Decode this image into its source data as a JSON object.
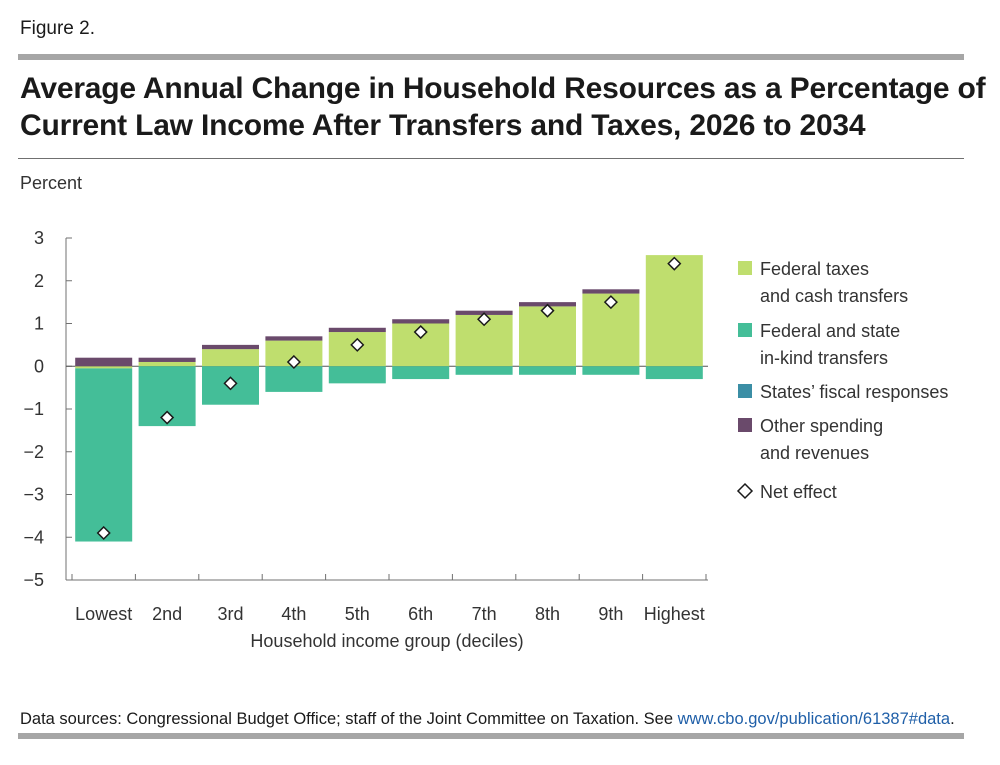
{
  "figure_label": "Figure 2.",
  "title_line1": "Average Annual Change in Household Resources as a Percentage of",
  "title_line2": "Current Law Income After Transfers and Taxes, 2026 to 2034",
  "sources_text": "Data sources: Congressional Budget Office; staff of the Joint Committee on Taxation. See ",
  "sources_link": "www.cbo.gov/publication/61387#data",
  "sources_end": ".",
  "colors": {
    "federal_taxes": "#bfde6e",
    "in_kind": "#44be98",
    "states": "#3b8ea5",
    "other": "#6a4a6b",
    "axis": "#707070"
  },
  "chart_data": {
    "type": "bar",
    "stacked": true,
    "title": "Average Annual Change in Household Resources as a Percentage of Current Law Income After Transfers and Taxes, 2026 to 2034",
    "ylabel": "Percent",
    "xlabel": "Household income group (deciles)",
    "ylim": [
      -5,
      3
    ],
    "yticks": [
      3,
      2,
      1,
      0,
      -1,
      -2,
      -3,
      -4,
      -5
    ],
    "ytick_labels": [
      "3",
      "2",
      "1",
      "0",
      "−1",
      "−2",
      "−3",
      "−4",
      "−5"
    ],
    "categories": [
      "Lowest",
      "2nd",
      "3rd",
      "4th",
      "5th",
      "6th",
      "7th",
      "8th",
      "9th",
      "Highest"
    ],
    "series": [
      {
        "name": "Federal taxes and cash transfers",
        "legend_lines": [
          "Federal taxes",
          "and cash transfers"
        ],
        "color_key": "federal_taxes",
        "values": [
          -0.05,
          0.1,
          0.4,
          0.6,
          0.8,
          1.0,
          1.2,
          1.4,
          1.7,
          2.6
        ]
      },
      {
        "name": "Federal and state in-kind transfers",
        "legend_lines": [
          "Federal and state",
          "in-kind transfers"
        ],
        "color_key": "in_kind",
        "values": [
          -4.05,
          -1.4,
          -0.9,
          -0.6,
          -0.4,
          -0.3,
          -0.2,
          -0.2,
          -0.2,
          -0.3
        ]
      },
      {
        "name": "States’ fiscal responses",
        "legend_lines": [
          "States’ fiscal responses"
        ],
        "color_key": "states",
        "values": [
          0,
          0,
          0,
          0,
          0,
          0,
          0,
          0,
          0,
          0
        ]
      },
      {
        "name": "Other spending and revenues",
        "legend_lines": [
          "Other spending",
          "and revenues"
        ],
        "color_key": "other",
        "values": [
          0.2,
          0.1,
          0.1,
          0.1,
          0.1,
          0.1,
          0.1,
          0.1,
          0.1,
          0.0
        ]
      }
    ],
    "net_effect": {
      "name": "Net effect",
      "values": [
        -3.9,
        -1.2,
        -0.4,
        0.1,
        0.5,
        0.8,
        1.1,
        1.3,
        1.5,
        2.4
      ]
    }
  }
}
